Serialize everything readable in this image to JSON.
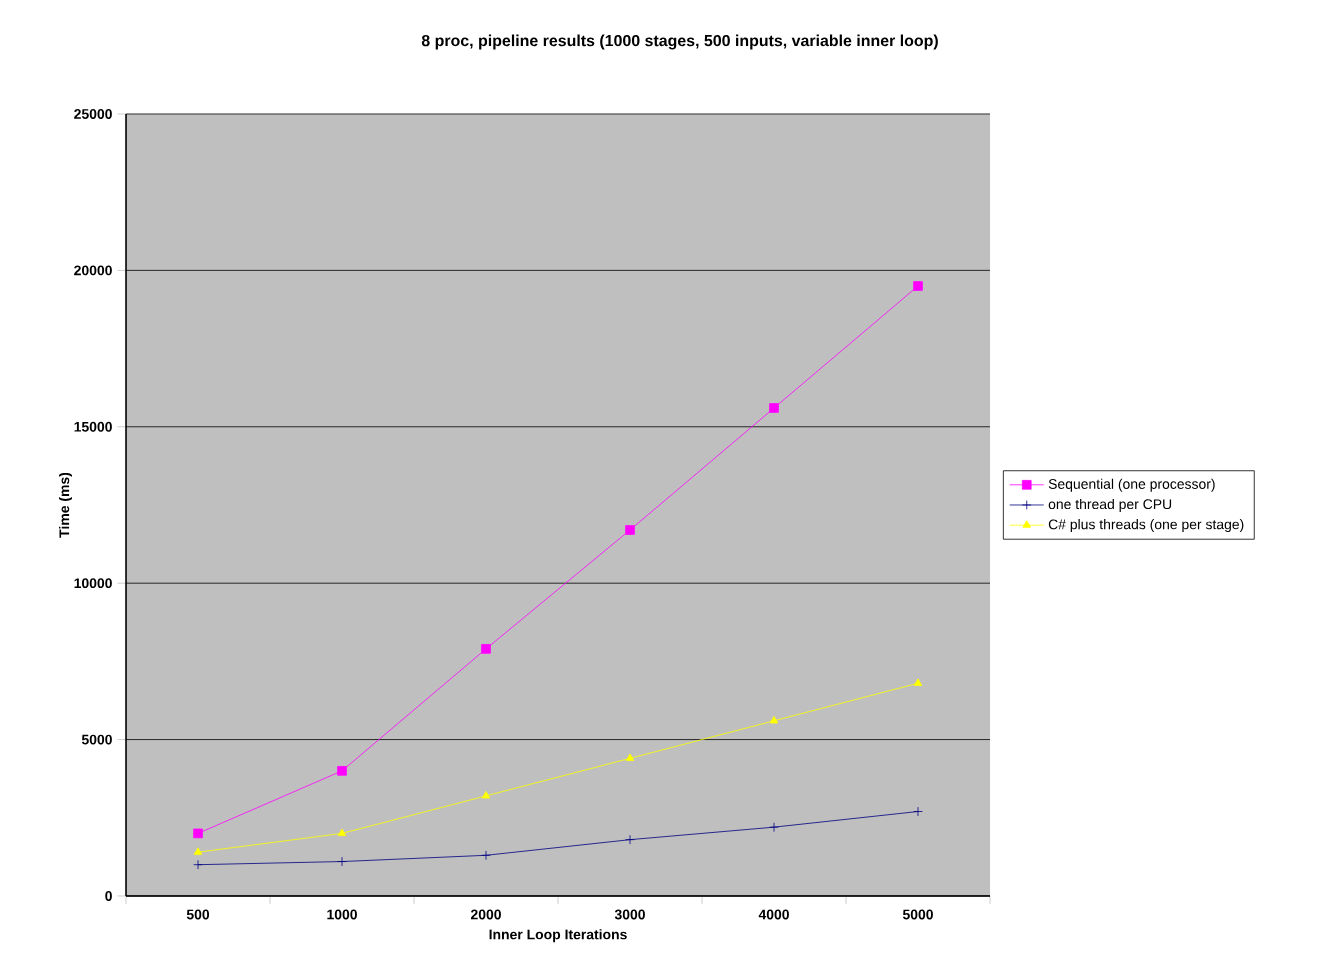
{
  "chart_data": {
    "type": "line",
    "title": "8 proc, pipeline results (1000 stages, 500 inputs, variable inner loop)",
    "xlabel": "Inner Loop Iterations",
    "ylabel": "Time (ms)",
    "categories": [
      "500",
      "1000",
      "2000",
      "3000",
      "4000",
      "5000"
    ],
    "series": [
      {
        "name": "Sequential (one processor)",
        "color": "#ff00ff",
        "marker": "square",
        "values": [
          2000,
          4000,
          7900,
          11700,
          15600,
          19500
        ]
      },
      {
        "name": "one thread per CPU",
        "color": "#000080",
        "marker": "cross",
        "values": [
          1000,
          1100,
          1300,
          1800,
          2200,
          2700
        ]
      },
      {
        "name": "C# plus threads (one per stage)",
        "color": "#ffff00",
        "marker": "triangle",
        "values": [
          1400,
          2000,
          3200,
          4400,
          5600,
          6800
        ]
      }
    ],
    "ylim": [
      0,
      25000
    ],
    "yticks": [
      0,
      5000,
      10000,
      15000,
      20000,
      25000
    ],
    "grid": "y",
    "legend": "right",
    "line_style": "solid"
  }
}
